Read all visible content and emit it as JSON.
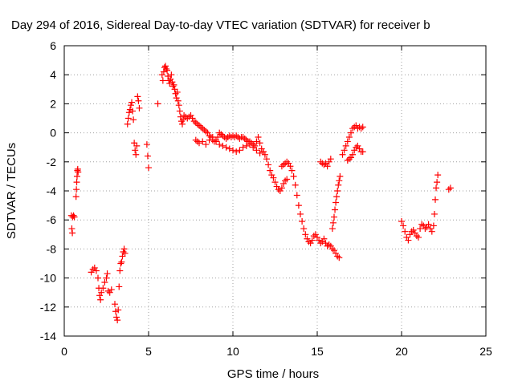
{
  "chart_data": {
    "type": "scatter",
    "title": "Day 294 of 2016, Sidereal Day-to-day VTEC variation (SDTVAR) for receiver b",
    "xlabel": "GPS time / hours",
    "ylabel": "SDTVAR / TECUs",
    "xlim": [
      0,
      25
    ],
    "ylim": [
      -14,
      6
    ],
    "xticks": [
      "0",
      "5",
      "10",
      "15",
      "20",
      "25"
    ],
    "yticks": [
      "6",
      "4",
      "2",
      "0",
      "-2",
      "-4",
      "-6",
      "-8",
      "-10",
      "-12",
      "-14"
    ],
    "grid": true,
    "marker": "+",
    "color": "#ff0000",
    "series": [
      {
        "points": [
          [
            0.42,
            -5.7
          ],
          [
            0.45,
            -6.6
          ],
          [
            0.48,
            -6.9
          ],
          [
            0.5,
            -5.8
          ],
          [
            0.55,
            -5.7
          ],
          [
            0.6,
            -5.8
          ],
          [
            0.7,
            -4.4
          ],
          [
            0.72,
            -3.9
          ],
          [
            0.74,
            -3.4
          ],
          [
            0.76,
            -3.0
          ],
          [
            0.78,
            -2.6
          ],
          [
            0.8,
            -2.5
          ],
          [
            0.82,
            -2.7
          ],
          [
            1.6,
            -9.6
          ],
          [
            1.7,
            -9.4
          ],
          [
            1.8,
            -9.3
          ],
          [
            1.9,
            -9.5
          ],
          [
            2.0,
            -10.0
          ],
          [
            2.05,
            -10.7
          ],
          [
            2.1,
            -11.2
          ],
          [
            2.15,
            -11.5
          ],
          [
            2.2,
            -11.0
          ],
          [
            2.3,
            -10.7
          ],
          [
            2.4,
            -10.3
          ],
          [
            2.5,
            -10.0
          ],
          [
            2.55,
            -9.7
          ],
          [
            2.6,
            -10.9
          ],
          [
            2.7,
            -11.0
          ],
          [
            2.8,
            -10.8
          ],
          [
            3.0,
            -11.8
          ],
          [
            3.05,
            -12.3
          ],
          [
            3.1,
            -12.7
          ],
          [
            3.15,
            -12.9
          ],
          [
            3.2,
            -12.2
          ],
          [
            3.25,
            -10.6
          ],
          [
            3.3,
            -9.5
          ],
          [
            3.35,
            -9.0
          ],
          [
            3.4,
            -8.9
          ],
          [
            3.45,
            -8.5
          ],
          [
            3.5,
            -8.2
          ],
          [
            3.55,
            -8.0
          ],
          [
            3.6,
            -8.3
          ],
          [
            3.75,
            0.6
          ],
          [
            3.8,
            1.0
          ],
          [
            3.85,
            1.4
          ],
          [
            3.9,
            1.6
          ],
          [
            3.95,
            1.9
          ],
          [
            4.0,
            2.1
          ],
          [
            4.05,
            1.5
          ],
          [
            4.1,
            0.9
          ],
          [
            4.15,
            -0.7
          ],
          [
            4.2,
            -1.2
          ],
          [
            4.25,
            -1.5
          ],
          [
            4.3,
            -0.9
          ],
          [
            4.35,
            2.5
          ],
          [
            4.4,
            2.2
          ],
          [
            4.45,
            1.7
          ],
          [
            4.9,
            -0.8
          ],
          [
            4.95,
            -1.6
          ],
          [
            5.0,
            -2.4
          ],
          [
            5.55,
            2.0
          ],
          [
            5.8,
            4.0
          ],
          [
            5.85,
            3.6
          ],
          [
            5.9,
            4.2
          ],
          [
            5.95,
            4.5
          ],
          [
            6.0,
            4.6
          ],
          [
            6.05,
            4.4
          ],
          [
            6.1,
            4.3
          ],
          [
            6.15,
            3.9
          ],
          [
            6.2,
            3.6
          ],
          [
            6.25,
            3.4
          ],
          [
            6.3,
            3.7
          ],
          [
            6.35,
            4.0
          ],
          [
            6.4,
            3.5
          ],
          [
            6.45,
            3.2
          ],
          [
            6.5,
            3.3
          ],
          [
            6.55,
            3.0
          ],
          [
            6.6,
            2.7
          ],
          [
            6.65,
            2.4
          ],
          [
            6.7,
            2.8
          ],
          [
            6.75,
            2.2
          ],
          [
            6.8,
            1.9
          ],
          [
            6.85,
            1.5
          ],
          [
            6.9,
            1.1
          ],
          [
            6.95,
            0.8
          ],
          [
            7.0,
            0.6
          ],
          [
            7.05,
            0.9
          ],
          [
            7.1,
            1.2
          ],
          [
            7.2,
            1.1
          ],
          [
            7.3,
            1.0
          ],
          [
            7.4,
            1.1
          ],
          [
            7.5,
            1.2
          ],
          [
            7.6,
            1.0
          ],
          [
            7.7,
            0.8
          ],
          [
            7.8,
            0.7
          ],
          [
            7.9,
            0.6
          ],
          [
            8.0,
            0.5
          ],
          [
            8.1,
            0.4
          ],
          [
            8.2,
            0.3
          ],
          [
            8.3,
            0.2
          ],
          [
            8.4,
            0.1
          ],
          [
            8.5,
            0.0
          ],
          [
            8.6,
            -0.2
          ],
          [
            8.7,
            -0.3
          ],
          [
            8.8,
            -0.5
          ],
          [
            8.9,
            -0.6
          ],
          [
            9.0,
            -0.5
          ],
          [
            9.1,
            -0.3
          ],
          [
            9.2,
            0.0
          ],
          [
            9.3,
            -0.1
          ],
          [
            9.4,
            -0.2
          ],
          [
            9.5,
            -0.3
          ],
          [
            9.6,
            -0.4
          ],
          [
            9.7,
            -0.3
          ],
          [
            9.8,
            -0.2
          ],
          [
            9.9,
            -0.3
          ],
          [
            10.0,
            -0.2
          ],
          [
            10.1,
            -0.3
          ],
          [
            10.2,
            -0.2
          ],
          [
            10.3,
            -0.3
          ],
          [
            10.4,
            -0.4
          ],
          [
            10.5,
            -0.3
          ],
          [
            10.6,
            -0.3
          ],
          [
            10.7,
            -0.4
          ],
          [
            10.8,
            -0.5
          ],
          [
            10.9,
            -0.6
          ],
          [
            11.0,
            -0.6
          ],
          [
            11.1,
            -0.7
          ],
          [
            11.2,
            -0.8
          ],
          [
            11.3,
            -0.9
          ],
          [
            11.4,
            -0.6
          ],
          [
            11.5,
            -0.3
          ],
          [
            11.6,
            -0.7
          ],
          [
            11.7,
            -1.1
          ],
          [
            11.8,
            -1.3
          ],
          [
            11.9,
            -1.5
          ],
          [
            12.0,
            -1.8
          ],
          [
            12.1,
            -2.2
          ],
          [
            12.2,
            -2.6
          ],
          [
            12.3,
            -2.9
          ],
          [
            12.4,
            -3.1
          ],
          [
            12.5,
            -3.4
          ],
          [
            12.6,
            -3.7
          ],
          [
            12.7,
            -3.9
          ],
          [
            12.8,
            -4.0
          ],
          [
            12.9,
            -3.8
          ],
          [
            13.0,
            -3.5
          ],
          [
            13.1,
            -3.3
          ],
          [
            13.2,
            -3.2
          ],
          [
            7.8,
            -0.5
          ],
          [
            7.9,
            -0.6
          ],
          [
            8.0,
            -0.7
          ],
          [
            8.2,
            -0.6
          ],
          [
            8.4,
            -0.8
          ],
          [
            8.6,
            -0.5
          ],
          [
            8.8,
            -0.3
          ],
          [
            9.0,
            -0.6
          ],
          [
            9.2,
            -0.8
          ],
          [
            9.4,
            -0.9
          ],
          [
            9.6,
            -1.0
          ],
          [
            9.8,
            -1.1
          ],
          [
            10.0,
            -1.2
          ],
          [
            10.2,
            -1.3
          ],
          [
            10.4,
            -1.2
          ],
          [
            10.6,
            -1.0
          ],
          [
            10.8,
            -0.9
          ],
          [
            11.0,
            -0.8
          ],
          [
            11.2,
            -1.0
          ],
          [
            11.4,
            -1.2
          ],
          [
            11.6,
            -1.4
          ],
          [
            11.8,
            -1.3
          ],
          [
            12.9,
            -2.3
          ],
          [
            13.0,
            -2.2
          ],
          [
            13.1,
            -2.1
          ],
          [
            13.2,
            -2.0
          ],
          [
            13.3,
            -2.1
          ],
          [
            13.4,
            -2.3
          ],
          [
            13.5,
            -2.6
          ],
          [
            13.6,
            -3.0
          ],
          [
            13.7,
            -3.6
          ],
          [
            13.8,
            -4.3
          ],
          [
            13.9,
            -5.0
          ],
          [
            14.0,
            -5.6
          ],
          [
            14.1,
            -6.1
          ],
          [
            14.2,
            -6.6
          ],
          [
            14.3,
            -7.0
          ],
          [
            14.4,
            -7.3
          ],
          [
            14.5,
            -7.5
          ],
          [
            14.6,
            -7.6
          ],
          [
            14.7,
            -7.4
          ],
          [
            14.8,
            -7.1
          ],
          [
            14.9,
            -7.0
          ],
          [
            15.0,
            -7.2
          ],
          [
            15.1,
            -7.4
          ],
          [
            15.2,
            -7.6
          ],
          [
            15.3,
            -7.5
          ],
          [
            15.4,
            -7.3
          ],
          [
            15.5,
            -7.6
          ],
          [
            15.6,
            -7.8
          ],
          [
            15.7,
            -7.7
          ],
          [
            15.8,
            -7.8
          ],
          [
            15.9,
            -8.0
          ],
          [
            16.0,
            -8.1
          ],
          [
            16.1,
            -8.3
          ],
          [
            16.2,
            -8.5
          ],
          [
            16.3,
            -8.6
          ],
          [
            15.2,
            -2.0
          ],
          [
            15.3,
            -2.1
          ],
          [
            15.4,
            -2.2
          ],
          [
            15.5,
            -2.1
          ],
          [
            15.6,
            -2.3
          ],
          [
            15.7,
            -2.0
          ],
          [
            15.8,
            -1.8
          ],
          [
            15.9,
            -6.6
          ],
          [
            15.95,
            -6.2
          ],
          [
            16.0,
            -5.8
          ],
          [
            16.05,
            -5.3
          ],
          [
            16.1,
            -4.8
          ],
          [
            16.15,
            -4.4
          ],
          [
            16.2,
            -4.0
          ],
          [
            16.25,
            -3.6
          ],
          [
            16.3,
            -3.3
          ],
          [
            16.35,
            -3.0
          ],
          [
            16.5,
            -1.5
          ],
          [
            16.6,
            -1.2
          ],
          [
            16.7,
            -0.9
          ],
          [
            16.8,
            -0.6
          ],
          [
            16.9,
            -0.3
          ],
          [
            17.0,
            0.0
          ],
          [
            17.1,
            0.3
          ],
          [
            17.2,
            0.4
          ],
          [
            17.3,
            0.5
          ],
          [
            17.4,
            0.3
          ],
          [
            17.5,
            0.4
          ],
          [
            17.6,
            0.3
          ],
          [
            17.7,
            0.4
          ],
          [
            16.8,
            -1.9
          ],
          [
            16.9,
            -1.8
          ],
          [
            17.0,
            -1.7
          ],
          [
            17.1,
            -1.5
          ],
          [
            17.2,
            -1.2
          ],
          [
            17.3,
            -1.0
          ],
          [
            17.4,
            -0.9
          ],
          [
            17.5,
            -1.1
          ],
          [
            17.6,
            -1.3
          ],
          [
            17.7,
            -1.3
          ],
          [
            20.0,
            -6.1
          ],
          [
            20.1,
            -6.4
          ],
          [
            20.2,
            -6.8
          ],
          [
            20.3,
            -7.2
          ],
          [
            20.4,
            -7.4
          ],
          [
            20.5,
            -7.0
          ],
          [
            20.6,
            -6.8
          ],
          [
            20.7,
            -6.7
          ],
          [
            20.8,
            -6.9
          ],
          [
            20.9,
            -7.1
          ],
          [
            21.0,
            -7.2
          ],
          [
            21.1,
            -6.6
          ],
          [
            21.2,
            -6.3
          ],
          [
            21.3,
            -6.4
          ],
          [
            21.4,
            -6.6
          ],
          [
            21.5,
            -6.5
          ],
          [
            21.6,
            -6.3
          ],
          [
            21.7,
            -6.6
          ],
          [
            21.8,
            -6.8
          ],
          [
            21.9,
            -6.4
          ],
          [
            21.95,
            -5.6
          ],
          [
            22.0,
            -4.6
          ],
          [
            22.05,
            -3.8
          ],
          [
            22.1,
            -3.4
          ],
          [
            22.15,
            -2.9
          ],
          [
            22.8,
            -3.9
          ],
          [
            22.9,
            -3.8
          ]
        ]
      }
    ]
  }
}
